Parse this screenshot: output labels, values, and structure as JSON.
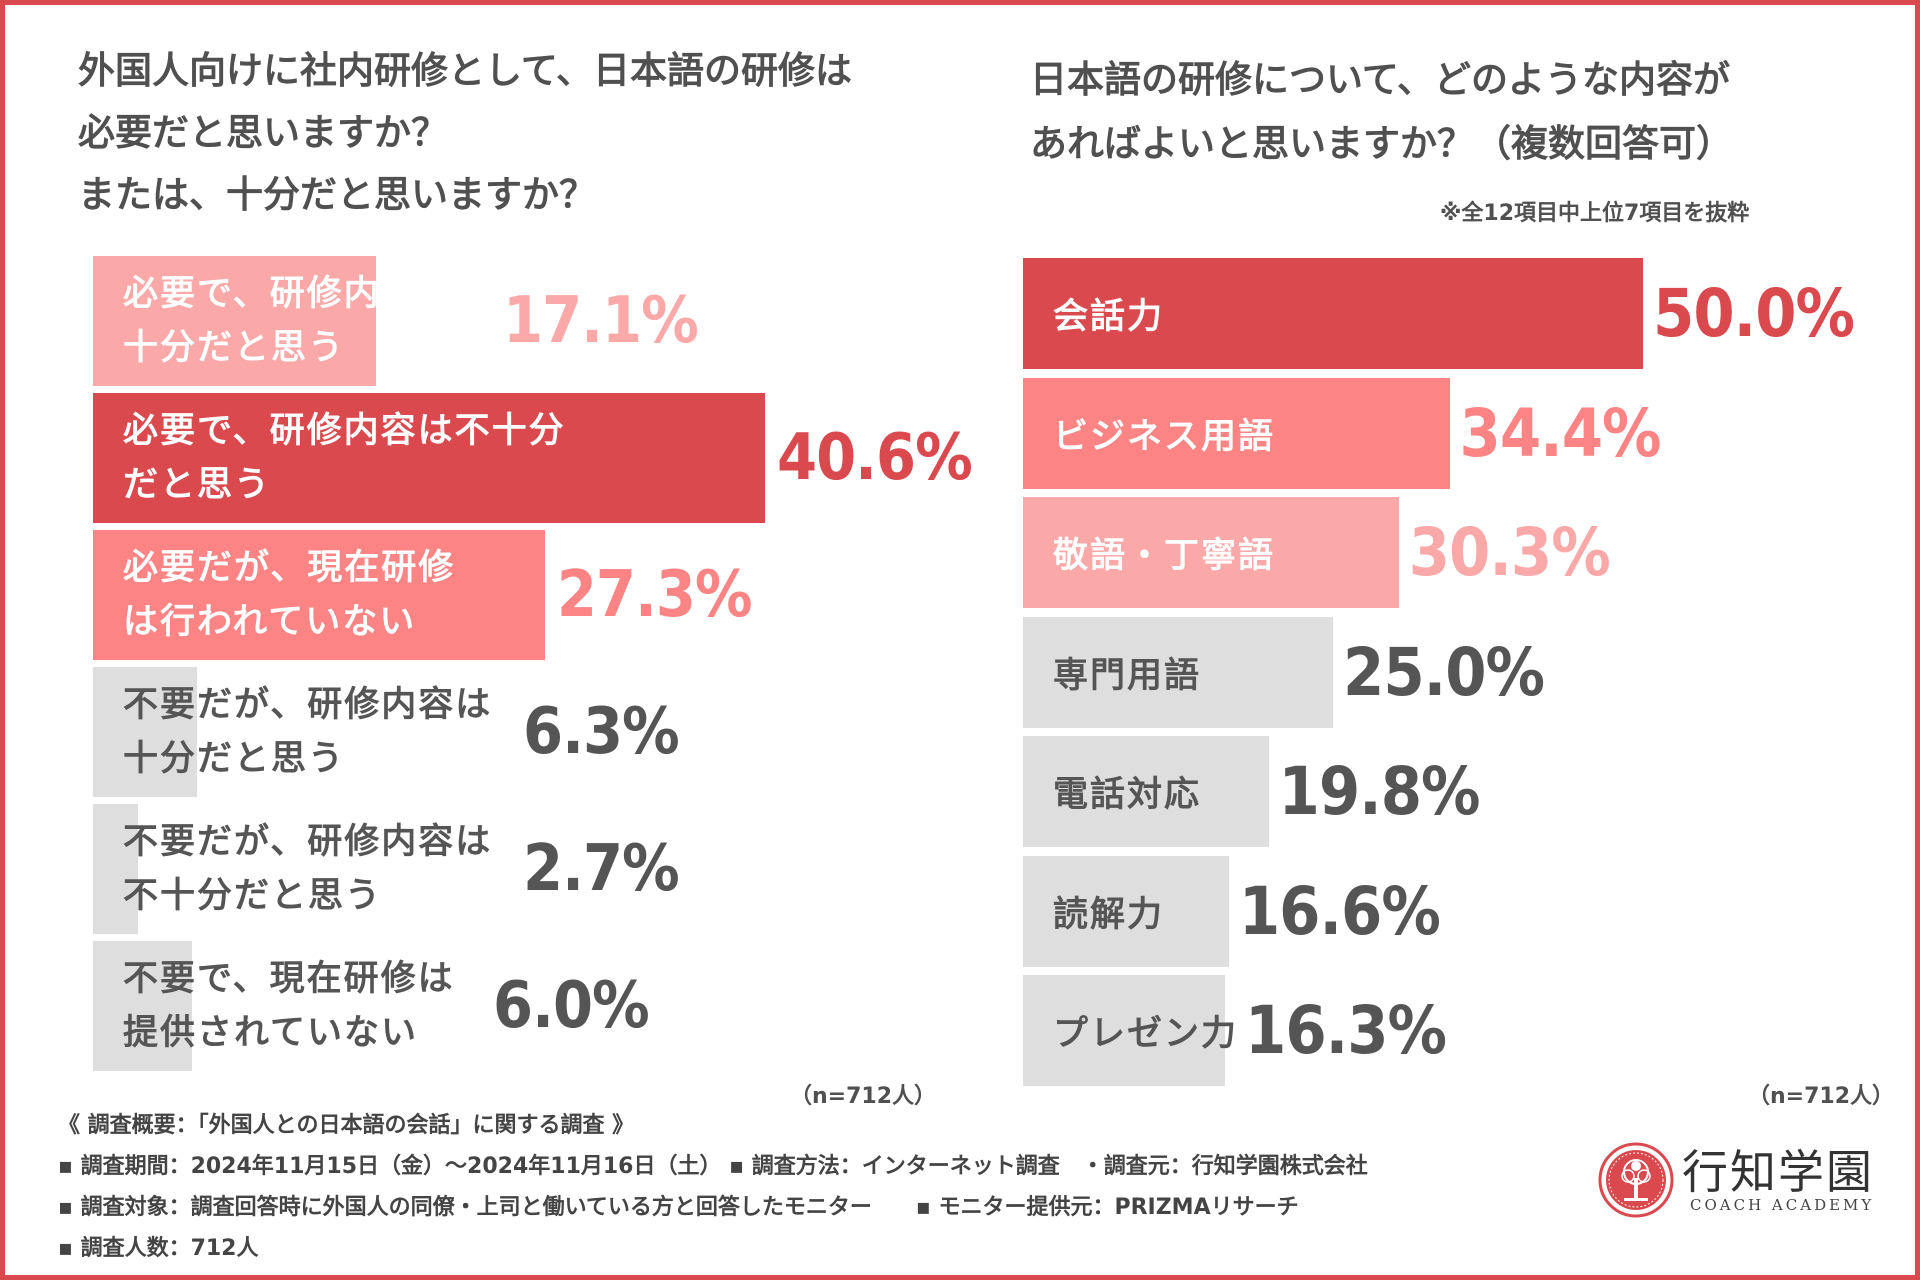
{
  "colors": {
    "frame": "#d9494e",
    "strong_red": "#d9494e",
    "mid_pink": "#fc8484",
    "light_pink": "#fba8a8",
    "gray": "#dedede",
    "dark_text": "#555555",
    "white_text": "#ffffff"
  },
  "left": {
    "title_lines": [
      "外国人向けに社内研修として、日本語の研修は",
      "必要だと思いますか？",
      "または、十分だと思いますか？"
    ],
    "n_note": "（n=712人）"
  },
  "right": {
    "title_lines": [
      "日本語の研修について、どのような内容が",
      "あればよいと思いますか？（複数回答可）"
    ],
    "note": "※全12項目中上位7項目を抜粋",
    "n_note": "（n=712人）"
  },
  "chart_data": [
    {
      "type": "bar",
      "orientation": "horizontal",
      "title": "外国人向けに社内研修として、日本語の研修は必要だと思いますか？または、十分だと思いますか？",
      "categories": [
        "必要で、研修内容も十分だと思う",
        "必要で、研修内容は不十分だと思う",
        "必要だが、現在研修は行われていない",
        "不要だが、研修内容は十分だと思う",
        "不要だが、研修内容は不十分だと思う",
        "不要で、現在研修は提供されていない"
      ],
      "label_lines": [
        [
          "必要で、研修内容も",
          "十分だと思う"
        ],
        [
          "必要で、研修内容は不十分",
          "だと思う"
        ],
        [
          "必要だが、現在研修",
          "は行われていない"
        ],
        [
          "不要だが、研修内容は",
          "十分だと思う"
        ],
        [
          "不要だが、研修内容は",
          "不十分だと思う"
        ],
        [
          "不要で、現在研修は",
          "提供されていない"
        ]
      ],
      "values": [
        17.1,
        40.6,
        27.3,
        6.3,
        2.7,
        6.0
      ],
      "value_labels": [
        "17.1%",
        "40.6%",
        "27.3%",
        "6.3%",
        "2.7%",
        "6.0%"
      ],
      "unit": "%",
      "n": "n=712人",
      "xlim": [
        0,
        40.6
      ],
      "bar_colors": [
        "#fba8a8",
        "#d9494e",
        "#fc8484",
        "#dedede",
        "#dedede",
        "#dedede"
      ],
      "label_colors": [
        "#ffffff",
        "#ffffff",
        "#ffffff",
        "#555555",
        "#555555",
        "#555555"
      ],
      "value_colors": [
        "#fba8a8",
        "#d9494e",
        "#fc8484",
        "#555555",
        "#555555",
        "#555555"
      ]
    },
    {
      "type": "bar",
      "orientation": "horizontal",
      "title": "日本語の研修について、どのような内容があればよいと思いますか？（複数回答可）",
      "categories": [
        "会話力",
        "ビジネス用語",
        "敬語・丁寧語",
        "専門用語",
        "電話対応",
        "読解力",
        "プレゼン力"
      ],
      "values": [
        50.0,
        34.4,
        30.3,
        25.0,
        19.8,
        16.6,
        16.3
      ],
      "value_labels": [
        "50.0%",
        "34.4%",
        "30.3%",
        "25.0%",
        "19.8%",
        "16.6%",
        "16.3%"
      ],
      "unit": "%",
      "n": "n=712人",
      "xlim": [
        0,
        50.0
      ],
      "bar_colors": [
        "#d9494e",
        "#fc8484",
        "#fba8a8",
        "#dedede",
        "#dedede",
        "#dedede",
        "#dedede"
      ],
      "label_colors": [
        "#ffffff",
        "#ffffff",
        "#ffffff",
        "#555555",
        "#555555",
        "#555555",
        "#555555"
      ],
      "value_colors": [
        "#d9494e",
        "#fc8484",
        "#fba8a8",
        "#555555",
        "#555555",
        "#555555",
        "#555555"
      ]
    }
  ],
  "survey": {
    "heading": "《 調査概要：「外国人との日本語の会話」に関する調査 》",
    "lines": [
      "▪ 調査期間：2024年11月15日（金）〜2024年11月16日（土） ▪ 調査方法：インターネット調査　・調査元：行知学園株式会社",
      "▪ 調査対象：調査回答時に外国人の同僚・上司と働いている方と回答したモニター　　▪ モニター提供元：PRIZMAリサーチ",
      "▪ 調査人数：712人"
    ]
  },
  "logo": {
    "name": "行知学園",
    "sub": "COACH ACADEMY"
  }
}
